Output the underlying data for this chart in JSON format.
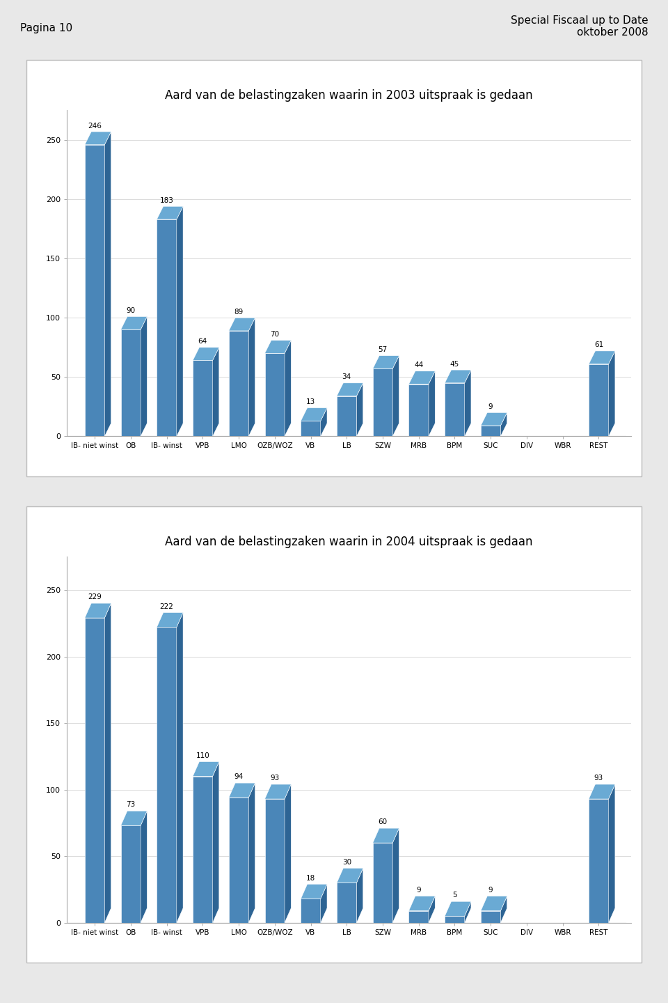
{
  "page_header_left": "Pagina 10",
  "page_header_right": "Special Fiscaal up to Date\noktober 2008",
  "chart1": {
    "title": "Aard van de belastingzaken waarin in 2003 uitspraak is gedaan",
    "categories": [
      "IB- niet winst",
      "OB",
      "IB- winst",
      "VPB",
      "LMO",
      "OZB/WOZ",
      "VB",
      "LB",
      "SZW",
      "MRB",
      "BPM",
      "SUC",
      "DIV",
      "WBR",
      "REST"
    ],
    "values": [
      246,
      90,
      183,
      64,
      89,
      70,
      13,
      34,
      57,
      44,
      45,
      9,
      0,
      0,
      61
    ],
    "ylim": [
      0,
      275
    ],
    "yticks": [
      0,
      50,
      100,
      150,
      200,
      250
    ]
  },
  "chart2": {
    "title": "Aard van de belastingzaken waarin in 2004 uitspraak is gedaan",
    "categories": [
      "IB- niet winst",
      "OB",
      "IB- winst",
      "VPB",
      "LMO",
      "OZB/WOZ",
      "VB",
      "LB",
      "SZW",
      "MRB",
      "BPM",
      "SUC",
      "DIV",
      "WBR",
      "REST"
    ],
    "values": [
      229,
      73,
      222,
      110,
      94,
      93,
      18,
      30,
      60,
      9,
      5,
      9,
      0,
      0,
      93
    ],
    "ylim": [
      0,
      275
    ],
    "yticks": [
      0,
      50,
      100,
      150,
      200,
      250
    ]
  },
  "bar_color_front": "#4a86b8",
  "bar_color_side": "#2d6494",
  "bar_color_top": "#6aaad4",
  "page_bg": "#e8e8e8",
  "chart_bg": "#ffffff",
  "title_fontsize": 12,
  "label_fontsize": 7.5,
  "value_fontsize": 7.5,
  "axis_fontsize": 8,
  "header_fontsize": 11
}
